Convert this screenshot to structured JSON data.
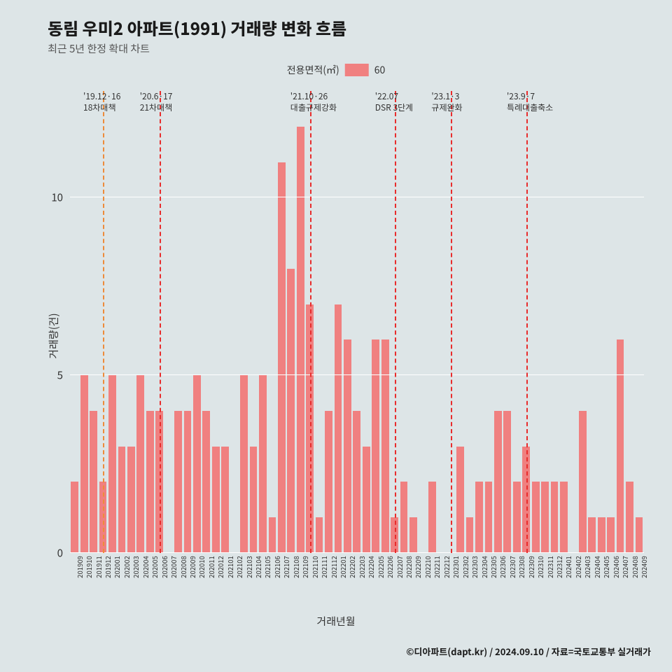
{
  "title": "동림 우미2 아파트(1991) 거래량 변화 흐름",
  "subtitle": "최근 5년 한정 확대 차트",
  "title_fontsize": 24,
  "subtitle_fontsize": 15,
  "legend": {
    "label": "전용면적(㎡)",
    "swatch_color": "#f08080",
    "value": "60",
    "fontsize": 14,
    "swatch_w": 34,
    "swatch_h": 18
  },
  "colors": {
    "background": "#dde5e7",
    "bar": "#f08080",
    "grid": "#ffffff",
    "vline_primary": "#e82c2c",
    "vline_secondary": "#ed8b3a"
  },
  "chart": {
    "type": "bar",
    "ylabel": "거래량(건)",
    "xlabel": "거래년월",
    "ylim": [
      0,
      13
    ],
    "yticks": [
      0,
      5,
      10
    ],
    "bar_width_ratio": 0.8,
    "categories": [
      "201909",
      "201910",
      "201911",
      "201912",
      "202001",
      "202002",
      "202003",
      "202004",
      "202005",
      "202006",
      "202007",
      "202008",
      "202009",
      "202010",
      "202011",
      "202012",
      "202101",
      "202102",
      "202103",
      "202104",
      "202105",
      "202106",
      "202107",
      "202108",
      "202109",
      "202110",
      "202111",
      "202112",
      "202201",
      "202202",
      "202203",
      "202204",
      "202205",
      "202206",
      "202207",
      "202208",
      "202209",
      "202210",
      "202211",
      "202212",
      "202301",
      "202302",
      "202303",
      "202304",
      "202305",
      "202306",
      "202307",
      "202308",
      "202309",
      "202310",
      "202311",
      "202312",
      "202401",
      "202402",
      "202403",
      "202404",
      "202405",
      "202406",
      "202407",
      "202408",
      "202409"
    ],
    "values": [
      2,
      5,
      4,
      2,
      5,
      3,
      3,
      5,
      4,
      4,
      0,
      4,
      4,
      5,
      4,
      3,
      3,
      0,
      5,
      3,
      5,
      1,
      11,
      8,
      12,
      7,
      1,
      4,
      7,
      6,
      4,
      3,
      6,
      6,
      1,
      2,
      1,
      0,
      2,
      0,
      0,
      3,
      1,
      2,
      2,
      4,
      4,
      2,
      3,
      2,
      2,
      2,
      2,
      0,
      4,
      1,
      1,
      1,
      6,
      2,
      1
    ]
  },
  "vlines": [
    {
      "x_index": 3,
      "color_key": "vline_secondary",
      "label_top": "'19.12·16",
      "label_bot": "18차대책"
    },
    {
      "x_index": 9,
      "color_key": "vline_primary",
      "label_top": "'20.6·17",
      "label_bot": "21차대책"
    },
    {
      "x_index": 25,
      "color_key": "vline_primary",
      "label_top": "'21.10·26",
      "label_bot": "대출규제강화"
    },
    {
      "x_index": 34,
      "color_key": "vline_primary",
      "label_top": "'22.07",
      "label_bot": "DSR 3단계"
    },
    {
      "x_index": 40,
      "color_key": "vline_primary",
      "label_top": "'23.1·3",
      "label_bot": "규제완화"
    },
    {
      "x_index": 48,
      "color_key": "vline_primary",
      "label_top": "'23.9·7",
      "label_bot": "특례대출축소"
    }
  ],
  "credit": "©디아파트(dapt.kr) / 2024.09.10 / 자료=국토교통부 실거래가"
}
